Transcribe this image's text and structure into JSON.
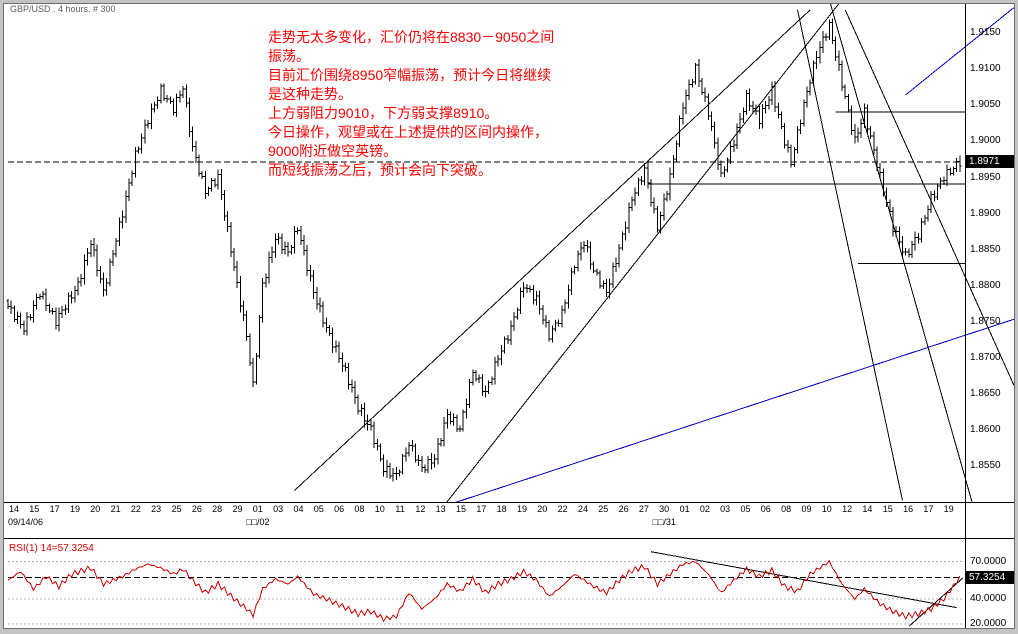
{
  "window": {
    "title": "GBP/USD . 4 hours. # 300"
  },
  "annotation": {
    "color": "#ff0000",
    "lines": [
      "走势无太多变化，汇价仍将在8830－9050之间",
      "振荡。",
      "目前汇价围绕8950窄幅振荡，预计今日将继续",
      "是这种走势。",
      "上方弱阻力9010，下方弱支撑8910。",
      "今日操作，观望或在上述提供的区间内操作，",
      "9000附近做空英镑。",
      "而短线振荡之后，预计会向下突破。"
    ]
  },
  "price_axis": {
    "labels": [
      "1.9150",
      "1.9100",
      "1.9050",
      "1.9000",
      "1.8950",
      "1.8900",
      "1.8850",
      "1.8800",
      "1.8750",
      "1.8700",
      "1.8650",
      "1.8600",
      "1.8550"
    ],
    "current": "1.8971"
  },
  "time_axis": {
    "ticks": [
      "14",
      "15",
      "17",
      "19",
      "20",
      "21",
      "22",
      "23",
      "25",
      "26",
      "28",
      "29",
      "01",
      "03",
      "04",
      "05",
      "06",
      "08",
      "10",
      "11",
      "12",
      "13",
      "15",
      "17",
      "18",
      "19",
      "20",
      "22",
      "24",
      "25",
      "26",
      "27",
      "30",
      "01",
      "02",
      "03",
      "05",
      "06",
      "08",
      "09",
      "10",
      "12",
      "14",
      "15",
      "16",
      "17",
      "19"
    ],
    "markers": [
      {
        "label": "09/14/06",
        "tick": 0
      },
      {
        "label": "□□/02",
        "tick": 12
      },
      {
        "label": "□□/31",
        "tick": 32
      }
    ]
  },
  "rsi_panel": {
    "label": "RSI(1) 14=57.3254",
    "label_color": "#dd0000",
    "levels": [
      "70.0000",
      "40.0000",
      "20.0000"
    ],
    "current": "57.3254"
  },
  "theme": {
    "chrome": "#c3c3c3",
    "plot_bg": "#ffffff",
    "bar_color": "#000000",
    "trend_black": "#000000",
    "trend_blue": "#0000bb",
    "annotation_red": "#ff0000",
    "rsi_red": "#cc0000",
    "tag_bg": "#000000",
    "tag_fg": "#ffffff"
  },
  "chart_data": {
    "type": "ohlc",
    "symbol": "GBP/USD",
    "timeframe": "4 hours",
    "bar_count": 300,
    "price_range": [
      1.8499,
      1.919
    ],
    "current_price": 1.8971,
    "dashed_price": 1.8971,
    "bar_range_base": 0.0006,
    "bar_range_var": 0.0012,
    "price_path": [
      [
        0,
        1.877
      ],
      [
        5,
        1.874
      ],
      [
        10,
        1.879
      ],
      [
        15,
        1.875
      ],
      [
        22,
        1.88
      ],
      [
        26,
        1.886
      ],
      [
        30,
        1.879
      ],
      [
        36,
        1.89
      ],
      [
        40,
        1.898
      ],
      [
        44,
        1.903
      ],
      [
        48,
        1.907
      ],
      [
        52,
        1.9045
      ],
      [
        55,
        1.9075
      ],
      [
        58,
        1.899
      ],
      [
        62,
        1.893
      ],
      [
        66,
        1.895
      ],
      [
        72,
        1.88
      ],
      [
        75,
        1.873
      ],
      [
        77,
        1.866
      ],
      [
        80,
        1.88
      ],
      [
        84,
        1.8865
      ],
      [
        88,
        1.8845
      ],
      [
        91,
        1.888
      ],
      [
        96,
        1.879
      ],
      [
        100,
        1.874
      ],
      [
        106,
        1.868
      ],
      [
        110,
        1.863
      ],
      [
        114,
        1.86
      ],
      [
        118,
        1.8545
      ],
      [
        122,
        1.8535
      ],
      [
        126,
        1.858
      ],
      [
        130,
        1.8545
      ],
      [
        134,
        1.856
      ],
      [
        138,
        1.862
      ],
      [
        142,
        1.86
      ],
      [
        146,
        1.868
      ],
      [
        150,
        1.865
      ],
      [
        154,
        1.87
      ],
      [
        158,
        1.874
      ],
      [
        162,
        1.88
      ],
      [
        166,
        1.878
      ],
      [
        170,
        1.873
      ],
      [
        174,
        1.876
      ],
      [
        178,
        1.883
      ],
      [
        181,
        1.886
      ],
      [
        184,
        1.882
      ],
      [
        188,
        1.879
      ],
      [
        192,
        1.885
      ],
      [
        196,
        1.892
      ],
      [
        200,
        1.896
      ],
      [
        204,
        1.888
      ],
      [
        208,
        1.895
      ],
      [
        212,
        1.905
      ],
      [
        216,
        1.91
      ],
      [
        220,
        1.904
      ],
      [
        224,
        1.895
      ],
      [
        228,
        1.9
      ],
      [
        232,
        1.906
      ],
      [
        236,
        1.903
      ],
      [
        240,
        1.907
      ],
      [
        244,
        1.9
      ],
      [
        246,
        1.897
      ],
      [
        250,
        1.905
      ],
      [
        254,
        1.912
      ],
      [
        258,
        1.916
      ],
      [
        262,
        1.908
      ],
      [
        266,
        1.9
      ],
      [
        269,
        1.904
      ],
      [
        274,
        1.895
      ],
      [
        278,
        1.888
      ],
      [
        282,
        1.884
      ],
      [
        286,
        1.887
      ],
      [
        290,
        1.892
      ],
      [
        294,
        1.895
      ],
      [
        299,
        1.8971
      ]
    ],
    "trendlines": [
      {
        "from": [
          90,
          1.8515
        ],
        "to": [
          252,
          1.9182
        ],
        "color": "#000000"
      },
      {
        "from": [
          137,
          1.8494
        ],
        "to": [
          262,
          1.9196
        ],
        "color": "#000000"
      },
      {
        "from": [
          248,
          1.9182
        ],
        "to": [
          281,
          1.8501
        ],
        "color": "#000000"
      },
      {
        "from": [
          258,
          1.9196
        ],
        "to": [
          317,
          1.8279
        ],
        "color": "#000000"
      },
      {
        "from": [
          263,
          1.9182
        ],
        "to": [
          316,
          1.8661
        ],
        "color": "#000000"
      },
      {
        "from": [
          130,
          1.8483
        ],
        "to": [
          317,
          1.8754
        ],
        "color": "#0000bb"
      },
      {
        "from": [
          282,
          1.9064
        ],
        "to": [
          316,
          1.9185
        ],
        "color": "#0000bb"
      }
    ],
    "hlines": [
      {
        "price": 1.904,
        "from": 260,
        "to": 301
      },
      {
        "price": 1.894,
        "from": 201,
        "to": 301
      },
      {
        "price": 1.883,
        "from": 267,
        "to": 301
      }
    ],
    "rsi": {
      "period": 14,
      "current": 57.3254,
      "range": [
        15,
        85
      ],
      "levels": [
        70,
        40,
        20
      ],
      "color": "#cc0000",
      "path": [
        [
          0,
          55
        ],
        [
          4,
          62
        ],
        [
          8,
          48
        ],
        [
          12,
          58
        ],
        [
          16,
          50
        ],
        [
          20,
          60
        ],
        [
          26,
          65
        ],
        [
          30,
          52
        ],
        [
          36,
          58
        ],
        [
          40,
          64
        ],
        [
          44,
          68
        ],
        [
          48,
          65
        ],
        [
          52,
          60
        ],
        [
          55,
          64
        ],
        [
          58,
          55
        ],
        [
          62,
          45
        ],
        [
          66,
          52
        ],
        [
          72,
          38
        ],
        [
          75,
          32
        ],
        [
          77,
          27
        ],
        [
          80,
          48
        ],
        [
          84,
          56
        ],
        [
          88,
          52
        ],
        [
          91,
          58
        ],
        [
          96,
          44
        ],
        [
          100,
          40
        ],
        [
          106,
          33
        ],
        [
          110,
          28
        ],
        [
          114,
          30
        ],
        [
          118,
          24
        ],
        [
          122,
          26
        ],
        [
          126,
          45
        ],
        [
          130,
          32
        ],
        [
          134,
          40
        ],
        [
          138,
          52
        ],
        [
          142,
          46
        ],
        [
          146,
          56
        ],
        [
          150,
          45
        ],
        [
          154,
          52
        ],
        [
          158,
          56
        ],
        [
          162,
          62
        ],
        [
          166,
          55
        ],
        [
          170,
          42
        ],
        [
          174,
          50
        ],
        [
          178,
          60
        ],
        [
          184,
          50
        ],
        [
          188,
          45
        ],
        [
          192,
          55
        ],
        [
          196,
          63
        ],
        [
          200,
          66
        ],
        [
          204,
          52
        ],
        [
          208,
          60
        ],
        [
          212,
          68
        ],
        [
          216,
          70
        ],
        [
          220,
          60
        ],
        [
          224,
          45
        ],
        [
          228,
          55
        ],
        [
          232,
          64
        ],
        [
          236,
          58
        ],
        [
          240,
          63
        ],
        [
          244,
          50
        ],
        [
          248,
          46
        ],
        [
          252,
          60
        ],
        [
          258,
          70
        ],
        [
          262,
          52
        ],
        [
          266,
          40
        ],
        [
          269,
          48
        ],
        [
          274,
          36
        ],
        [
          278,
          30
        ],
        [
          282,
          26
        ],
        [
          286,
          28
        ],
        [
          290,
          32
        ],
        [
          294,
          40
        ],
        [
          299,
          57.3
        ]
      ],
      "trendlines": [
        {
          "from": [
            202,
            78
          ],
          "to": [
            298,
            33
          ],
          "color": "#000000"
        },
        {
          "from": [
            283,
            18
          ],
          "to": [
            300,
            57
          ],
          "color": "#000000"
        }
      ]
    }
  }
}
